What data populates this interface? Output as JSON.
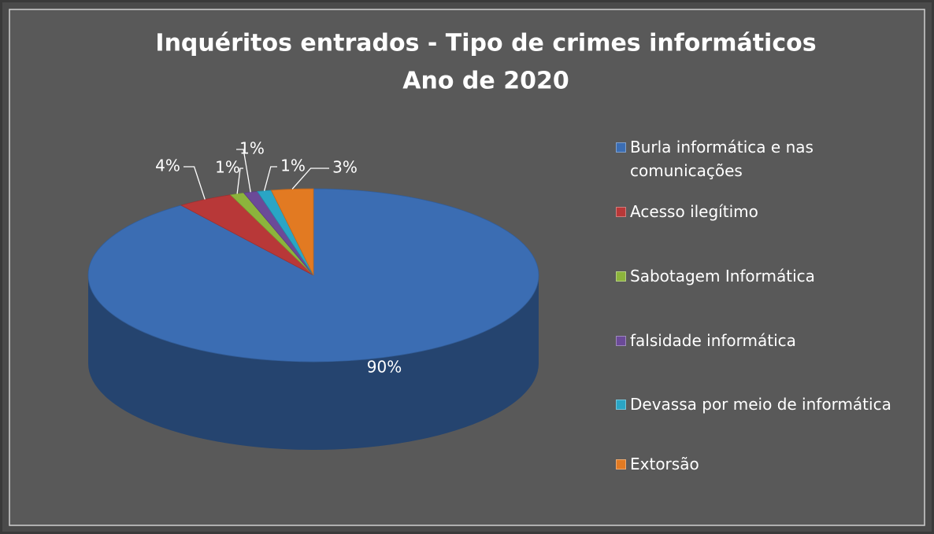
{
  "chart_data": {
    "type": "pie",
    "title": [
      "Inquéritos entrados - Tipo de crimes informáticos",
      "Ano de 2020"
    ],
    "categories": [
      "Burla informática e nas comunicações",
      "Acesso ilegítimo",
      "Sabotagem Informática",
      "falsidade informática",
      "Devassa por meio de informática",
      "Extorsão"
    ],
    "values": [
      90,
      4,
      1,
      1,
      1,
      3
    ],
    "value_labels": [
      "90%",
      "4%",
      "1%",
      "1%",
      "1%",
      "3%"
    ],
    "colors": [
      "#3b6db3",
      "#b83838",
      "#8cb43c",
      "#6b4a98",
      "#2aa5c5",
      "#e27a22"
    ],
    "legend": "right"
  }
}
